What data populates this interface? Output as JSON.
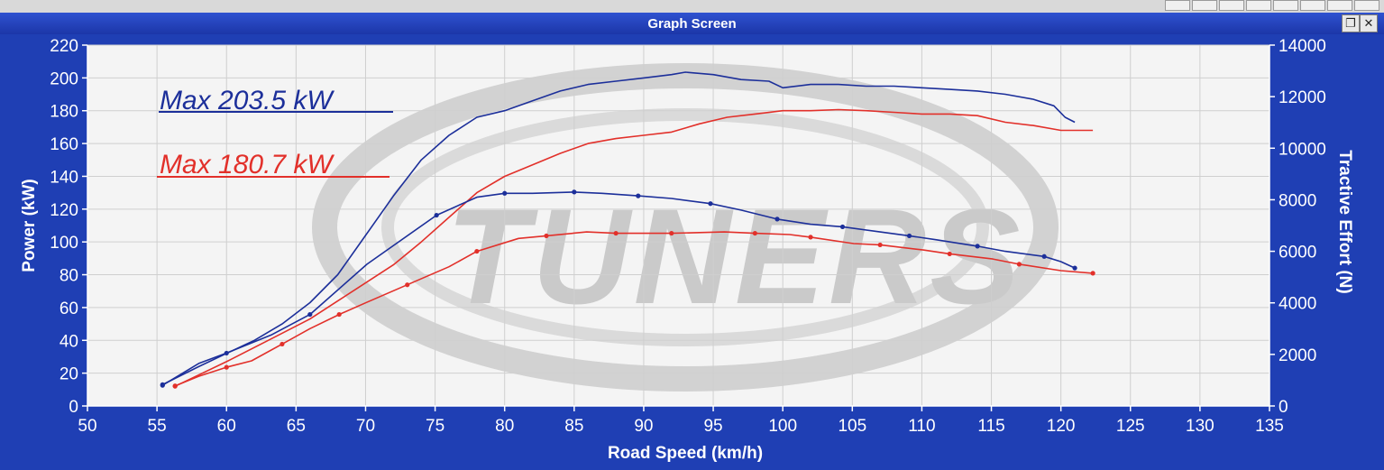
{
  "window": {
    "title": "Graph Screen",
    "restore_icon": "restore-icon",
    "close_icon": "close-icon"
  },
  "colors": {
    "frame": "#1f3fb4",
    "plot_bg": "#f4f4f4",
    "blue_series": "#1c2f9a",
    "red_series": "#e2302a",
    "axis_text": "#ffffff"
  },
  "chart_data": {
    "type": "line",
    "xlabel": "Road Speed (km/h)",
    "ylabel": "Power (kW)",
    "y2label": "Tractive Effort (N)",
    "xlim": [
      50,
      135
    ],
    "ylim": [
      0,
      220
    ],
    "y2lim": [
      0,
      14000
    ],
    "xticks": [
      50,
      55,
      60,
      65,
      70,
      75,
      80,
      85,
      90,
      95,
      100,
      105,
      110,
      115,
      120,
      125,
      130,
      135
    ],
    "yticks": [
      0,
      20,
      40,
      60,
      80,
      100,
      120,
      140,
      160,
      180,
      200,
      220
    ],
    "y2ticks": [
      0,
      2000,
      4000,
      6000,
      8000,
      10000,
      12000,
      14000
    ],
    "grid": true,
    "annotations": [
      {
        "text": "Max 203.5 kW",
        "color": "#1c2f9a"
      },
      {
        "text": "Max 180.7 kW",
        "color": "#e2302a"
      }
    ],
    "watermark": "TUNERS",
    "series": [
      {
        "color": "#1c2f9a",
        "axis": "left",
        "kind": "power",
        "x": [
          55.4,
          58,
          60,
          62,
          64,
          66,
          68,
          70,
          72,
          74,
          76,
          78,
          80,
          82,
          84,
          86,
          88,
          90,
          92,
          93,
          95,
          97,
          99,
          100,
          102,
          104,
          106,
          108,
          110,
          112,
          114,
          116,
          118,
          119.5,
          120.3,
          121
        ],
        "y": [
          13,
          24,
          32,
          40,
          50,
          63,
          80,
          104,
          128,
          150,
          165,
          176,
          180,
          186,
          192,
          196,
          198,
          200,
          202,
          203.5,
          202,
          199,
          198,
          194,
          196,
          196,
          195,
          195,
          194,
          193,
          192,
          190,
          187,
          183,
          176,
          173
        ]
      },
      {
        "color": "#e2302a",
        "axis": "left",
        "kind": "power",
        "x": [
          56.3,
          60,
          63,
          66,
          68,
          70,
          72,
          74,
          76,
          78,
          80,
          82,
          84,
          86,
          88,
          90,
          92,
          94,
          96,
          98,
          100,
          102,
          104,
          106,
          108,
          110,
          112,
          114,
          116,
          118,
          120,
          122.3
        ],
        "y": [
          12,
          27,
          40,
          53,
          64,
          75,
          86,
          100,
          115,
          130,
          140,
          147,
          154,
          160,
          163,
          165,
          167,
          172,
          176,
          178,
          180,
          180,
          180.7,
          180,
          179,
          178,
          178,
          177,
          173,
          171,
          168,
          168
        ]
      },
      {
        "color": "#1c2f9a",
        "axis": "right",
        "kind": "tractive",
        "x": [
          55.4,
          58,
          60,
          63.2,
          66,
          70.1,
          75.1,
          78,
          80,
          82,
          85,
          87,
          89.6,
          92,
          94.8,
          97,
          99.6,
          102,
          104.3,
          107,
          109.1,
          111,
          114,
          116,
          118.8,
          120,
          121
        ],
        "y": [
          800,
          1650,
          2050,
          2750,
          3550,
          5500,
          7400,
          8100,
          8250,
          8250,
          8300,
          8250,
          8150,
          8050,
          7850,
          7600,
          7250,
          7050,
          6950,
          6750,
          6600,
          6450,
          6200,
          6000,
          5800,
          5600,
          5350
        ]
      },
      {
        "color": "#e2302a",
        "axis": "right",
        "kind": "tractive",
        "x": [
          56.3,
          58,
          60,
          61.8,
          64,
          66,
          68.1,
          70,
          73,
          76,
          78,
          81,
          83,
          85.9,
          88,
          90.6,
          92,
          95.8,
          98,
          100.5,
          102,
          105.1,
          107,
          110.1,
          112,
          115.1,
          117,
          120,
          122.3
        ],
        "y": [
          780,
          1150,
          1500,
          1750,
          2400,
          3000,
          3550,
          4000,
          4700,
          5400,
          6000,
          6500,
          6600,
          6750,
          6700,
          6700,
          6700,
          6750,
          6700,
          6650,
          6550,
          6300,
          6250,
          6050,
          5900,
          5700,
          5500,
          5250,
          5150
        ]
      }
    ]
  }
}
